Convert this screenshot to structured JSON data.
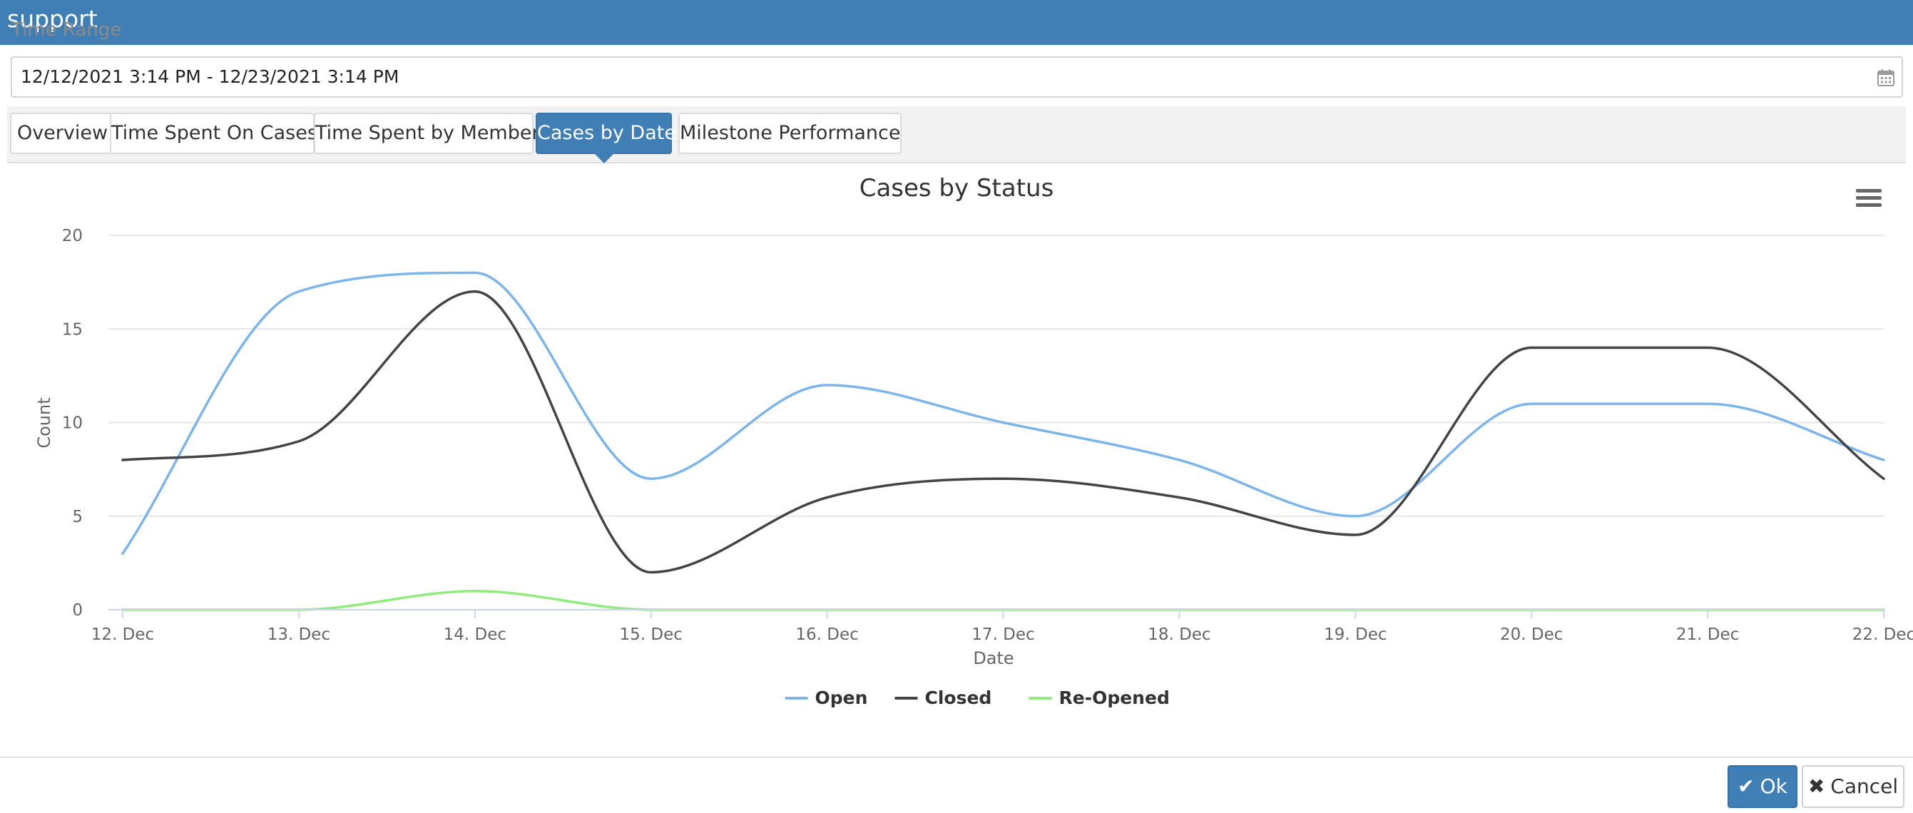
{
  "window": {
    "title": "support"
  },
  "time_range": {
    "label": "Time Range",
    "value": "12/12/2021 3:14 PM - 12/23/2021 3:14 PM",
    "icon": "calendar-icon"
  },
  "tabs": [
    {
      "label": "Overview",
      "active": false
    },
    {
      "label": "Time Spent On Cases",
      "active": false
    },
    {
      "label": "Time Spent by Member",
      "active": false
    },
    {
      "label": "Cases by Date",
      "active": true
    },
    {
      "label": "Milestone Performance",
      "active": false
    }
  ],
  "chart_menu": {
    "icon": "hamburger-menu-icon"
  },
  "chart_data": {
    "type": "line",
    "title": "Cases by Status",
    "xlabel": "Date",
    "ylabel": "Count",
    "categories": [
      "12. Dec",
      "13. Dec",
      "14. Dec",
      "15. Dec",
      "16. Dec",
      "17. Dec",
      "18. Dec",
      "19. Dec",
      "20. Dec",
      "21. Dec",
      "22. Dec"
    ],
    "ylim": [
      0,
      20
    ],
    "yticks": [
      0,
      5,
      10,
      15,
      20
    ],
    "grid": true,
    "legend": "bottom-center",
    "series": [
      {
        "name": "Open",
        "color": "#7cb5ec",
        "values": [
          3,
          17,
          18,
          7,
          12,
          10,
          8,
          5,
          11,
          11,
          8
        ]
      },
      {
        "name": "Closed",
        "color": "#434348",
        "values": [
          8,
          9,
          17,
          2,
          6,
          7,
          6,
          4,
          14,
          14,
          7
        ]
      },
      {
        "name": "Re-Opened",
        "color": "#90ed7d",
        "values": [
          0,
          0,
          1,
          0,
          0,
          0,
          0,
          0,
          0,
          0,
          0
        ]
      }
    ]
  },
  "footer": {
    "ok_label": "Ok",
    "ok_icon": "checkmark-icon",
    "cancel_label": "Cancel",
    "cancel_icon": "x-icon"
  }
}
